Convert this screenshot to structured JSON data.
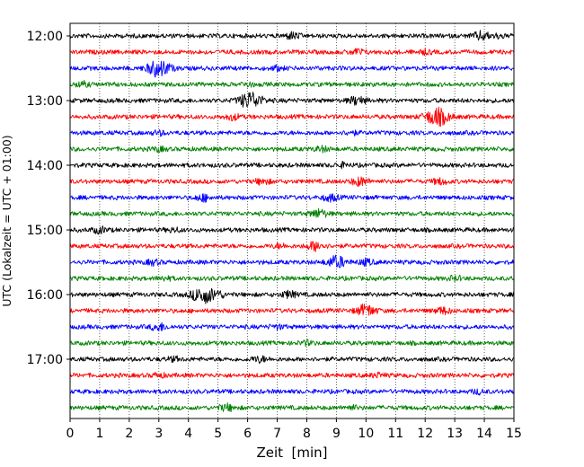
{
  "chart_data": {
    "type": "line",
    "xlabel": "Zeit  [min]",
    "ylabel": "UTC (Lokalzeit = UTC + 01:00)",
    "xlim": [
      0,
      15
    ],
    "xticks": [
      "0",
      "1",
      "2",
      "3",
      "4",
      "5",
      "6",
      "7",
      "8",
      "9",
      "10",
      "11",
      "12",
      "13",
      "14",
      "15"
    ],
    "yticks": [
      "12:00",
      "13:00",
      "14:00",
      "15:00",
      "16:00",
      "17:00"
    ],
    "grid": "vertical-dotted",
    "traces_per_hour": 4,
    "colors": [
      "#000000",
      "#ff0000",
      "#0000ff",
      "#008000"
    ],
    "traces": [
      {
        "start": "12:00",
        "events": [
          [
            7.5,
            0.35
          ],
          [
            13.9,
            0.45
          ],
          [
            14.5,
            0.2
          ]
        ]
      },
      {
        "start": "12:15",
        "events": [
          [
            9.7,
            0.3
          ],
          [
            12.0,
            0.2
          ]
        ]
      },
      {
        "start": "12:30",
        "events": [
          [
            3.0,
            0.95
          ],
          [
            7.0,
            0.2
          ]
        ]
      },
      {
        "start": "12:45",
        "events": [
          [
            0.4,
            0.25
          ],
          [
            6.0,
            0.2
          ]
        ]
      },
      {
        "start": "13:00",
        "events": [
          [
            6.1,
            0.95
          ],
          [
            9.7,
            0.45
          ]
        ]
      },
      {
        "start": "13:15",
        "events": [
          [
            12.4,
            1.0
          ],
          [
            5.5,
            0.3
          ]
        ]
      },
      {
        "start": "13:30",
        "events": [
          [
            3.0,
            0.2
          ],
          [
            9.5,
            0.2
          ]
        ]
      },
      {
        "start": "13:45",
        "events": [
          [
            8.5,
            0.25
          ],
          [
            3.0,
            0.2
          ]
        ]
      },
      {
        "start": "14:00",
        "events": [
          [
            9.2,
            0.2
          ]
        ]
      },
      {
        "start": "14:15",
        "events": [
          [
            9.8,
            0.45
          ],
          [
            12.5,
            0.3
          ],
          [
            6.5,
            0.3
          ]
        ]
      },
      {
        "start": "14:30",
        "events": [
          [
            4.5,
            0.35
          ],
          [
            8.8,
            0.35
          ]
        ]
      },
      {
        "start": "14:45",
        "events": [
          [
            8.4,
            0.45
          ]
        ]
      },
      {
        "start": "15:00",
        "events": [
          [
            1.0,
            0.3
          ],
          [
            3.5,
            0.2
          ]
        ]
      },
      {
        "start": "15:15",
        "events": [
          [
            8.3,
            0.5
          ],
          [
            7.1,
            0.2
          ]
        ]
      },
      {
        "start": "15:30",
        "events": [
          [
            9.0,
            0.65
          ],
          [
            10.0,
            0.3
          ],
          [
            2.8,
            0.25
          ]
        ]
      },
      {
        "start": "15:45",
        "events": [
          [
            3.2,
            0.2
          ],
          [
            13.0,
            0.2
          ]
        ]
      },
      {
        "start": "16:00",
        "events": [
          [
            4.5,
            0.95
          ],
          [
            7.4,
            0.35
          ],
          [
            5.0,
            0.3
          ]
        ]
      },
      {
        "start": "16:15",
        "events": [
          [
            10.0,
            0.65
          ],
          [
            12.6,
            0.35
          ]
        ]
      },
      {
        "start": "16:30",
        "events": [
          [
            3.0,
            0.4
          ],
          [
            7.0,
            0.2
          ]
        ]
      },
      {
        "start": "16:45",
        "events": [
          [
            8.0,
            0.2
          ]
        ]
      },
      {
        "start": "17:00",
        "events": [
          [
            6.4,
            0.3
          ],
          [
            3.5,
            0.2
          ]
        ]
      },
      {
        "start": "17:15",
        "events": [
          [
            3.0,
            0.2
          ],
          [
            10.4,
            0.2
          ]
        ]
      },
      {
        "start": "17:30",
        "events": [
          [
            13.8,
            0.2
          ]
        ]
      },
      {
        "start": "17:45",
        "events": [
          [
            5.3,
            0.35
          ],
          [
            9.5,
            0.2
          ]
        ]
      }
    ]
  }
}
